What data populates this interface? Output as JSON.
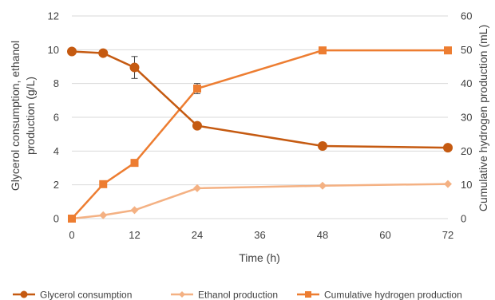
{
  "chart_data": {
    "type": "line",
    "x": [
      0,
      6,
      12,
      24,
      48,
      72
    ],
    "xlabel": "Time (h)",
    "xticks": [
      "0",
      "12",
      "24",
      "36",
      "48",
      "60",
      "72"
    ],
    "xlim": [
      0,
      72
    ],
    "ylabel_left_line1": "Glycerol consumption, ethanol",
    "ylabel_left_line2": "production (g/L)",
    "ylim_left": [
      0,
      12
    ],
    "yticks_left": [
      "0",
      "2",
      "4",
      "6",
      "8",
      "10",
      "12"
    ],
    "ylabel_right": "Cumulative hydrogen production (mL)",
    "ylim_right": [
      0,
      60
    ],
    "yticks_right": [
      "0",
      "10",
      "20",
      "30",
      "40",
      "50",
      "60"
    ],
    "grid": "horizontal",
    "legend_position": "bottom",
    "series": [
      {
        "name": "Glycerol consumption",
        "axis": "left",
        "marker": "circle",
        "color": "#c55a11",
        "values": [
          9.9,
          9.8,
          8.95,
          5.5,
          4.3,
          4.2
        ],
        "error": [
          0,
          0.1,
          0.65,
          0,
          0,
          0
        ]
      },
      {
        "name": "Ethanol production",
        "axis": "left",
        "marker": "diamond",
        "color": "#f4b183",
        "values": [
          0,
          0.2,
          0.5,
          1.8,
          1.95,
          2.05
        ],
        "error": [
          0,
          0,
          0,
          0,
          0,
          0
        ]
      },
      {
        "name": "Cumulative hydrogen production",
        "axis": "right",
        "marker": "square",
        "color": "#ed7d31",
        "values": [
          0,
          10.2,
          16.5,
          38.5,
          49.8,
          49.8
        ],
        "error": [
          0,
          0,
          0,
          1.5,
          0,
          0
        ]
      }
    ]
  }
}
